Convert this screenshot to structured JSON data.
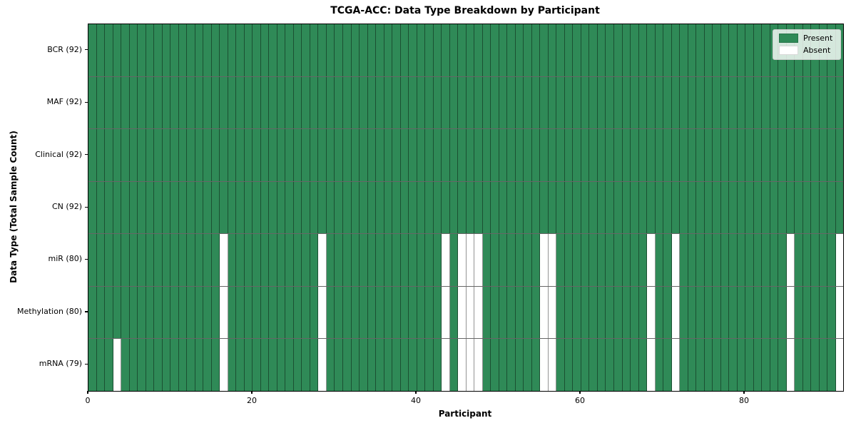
{
  "chart_data": {
    "type": "heatmap",
    "title": "TCGA-ACC: Data Type Breakdown by Participant",
    "xlabel": "Participant",
    "ylabel": "Data Type (Total Sample Count)",
    "x_ticks": [
      0,
      20,
      40,
      60,
      80
    ],
    "x_range": [
      0,
      92
    ],
    "n_participants": 92,
    "grid": "cell-borders",
    "legend": {
      "position": "upper-right",
      "entries": [
        {
          "label": "Present",
          "color": "#2f8a57"
        },
        {
          "label": "Absent",
          "color": "#ffffff"
        }
      ]
    },
    "colors": {
      "present": "#2f8a57",
      "absent": "#ffffff",
      "cell_border": "rgba(0,0,0,0.42)",
      "row_separator": "rgba(0,0,0,0.60)"
    },
    "rows": [
      {
        "label": "BCR (92)",
        "data_type": "BCR",
        "present_count": 92,
        "absent_participants": []
      },
      {
        "label": "MAF (92)",
        "data_type": "MAF",
        "present_count": 92,
        "absent_participants": []
      },
      {
        "label": "Clinical (92)",
        "data_type": "Clinical",
        "present_count": 92,
        "absent_participants": []
      },
      {
        "label": "CN (92)",
        "data_type": "CN",
        "present_count": 92,
        "absent_participants": []
      },
      {
        "label": "miR (80)",
        "data_type": "miR",
        "present_count": 80,
        "absent_participants": [
          16,
          28,
          43,
          45,
          46,
          47,
          55,
          56,
          68,
          71,
          85,
          91
        ]
      },
      {
        "label": "Methylation (80)",
        "data_type": "Methylation",
        "present_count": 80,
        "absent_participants": [
          16,
          28,
          43,
          45,
          46,
          47,
          55,
          56,
          68,
          71,
          85,
          91
        ]
      },
      {
        "label": "mRNA (79)",
        "data_type": "mRNA",
        "present_count": 79,
        "absent_participants": [
          3,
          16,
          28,
          43,
          45,
          46,
          47,
          55,
          56,
          68,
          71,
          85,
          91
        ]
      }
    ]
  }
}
